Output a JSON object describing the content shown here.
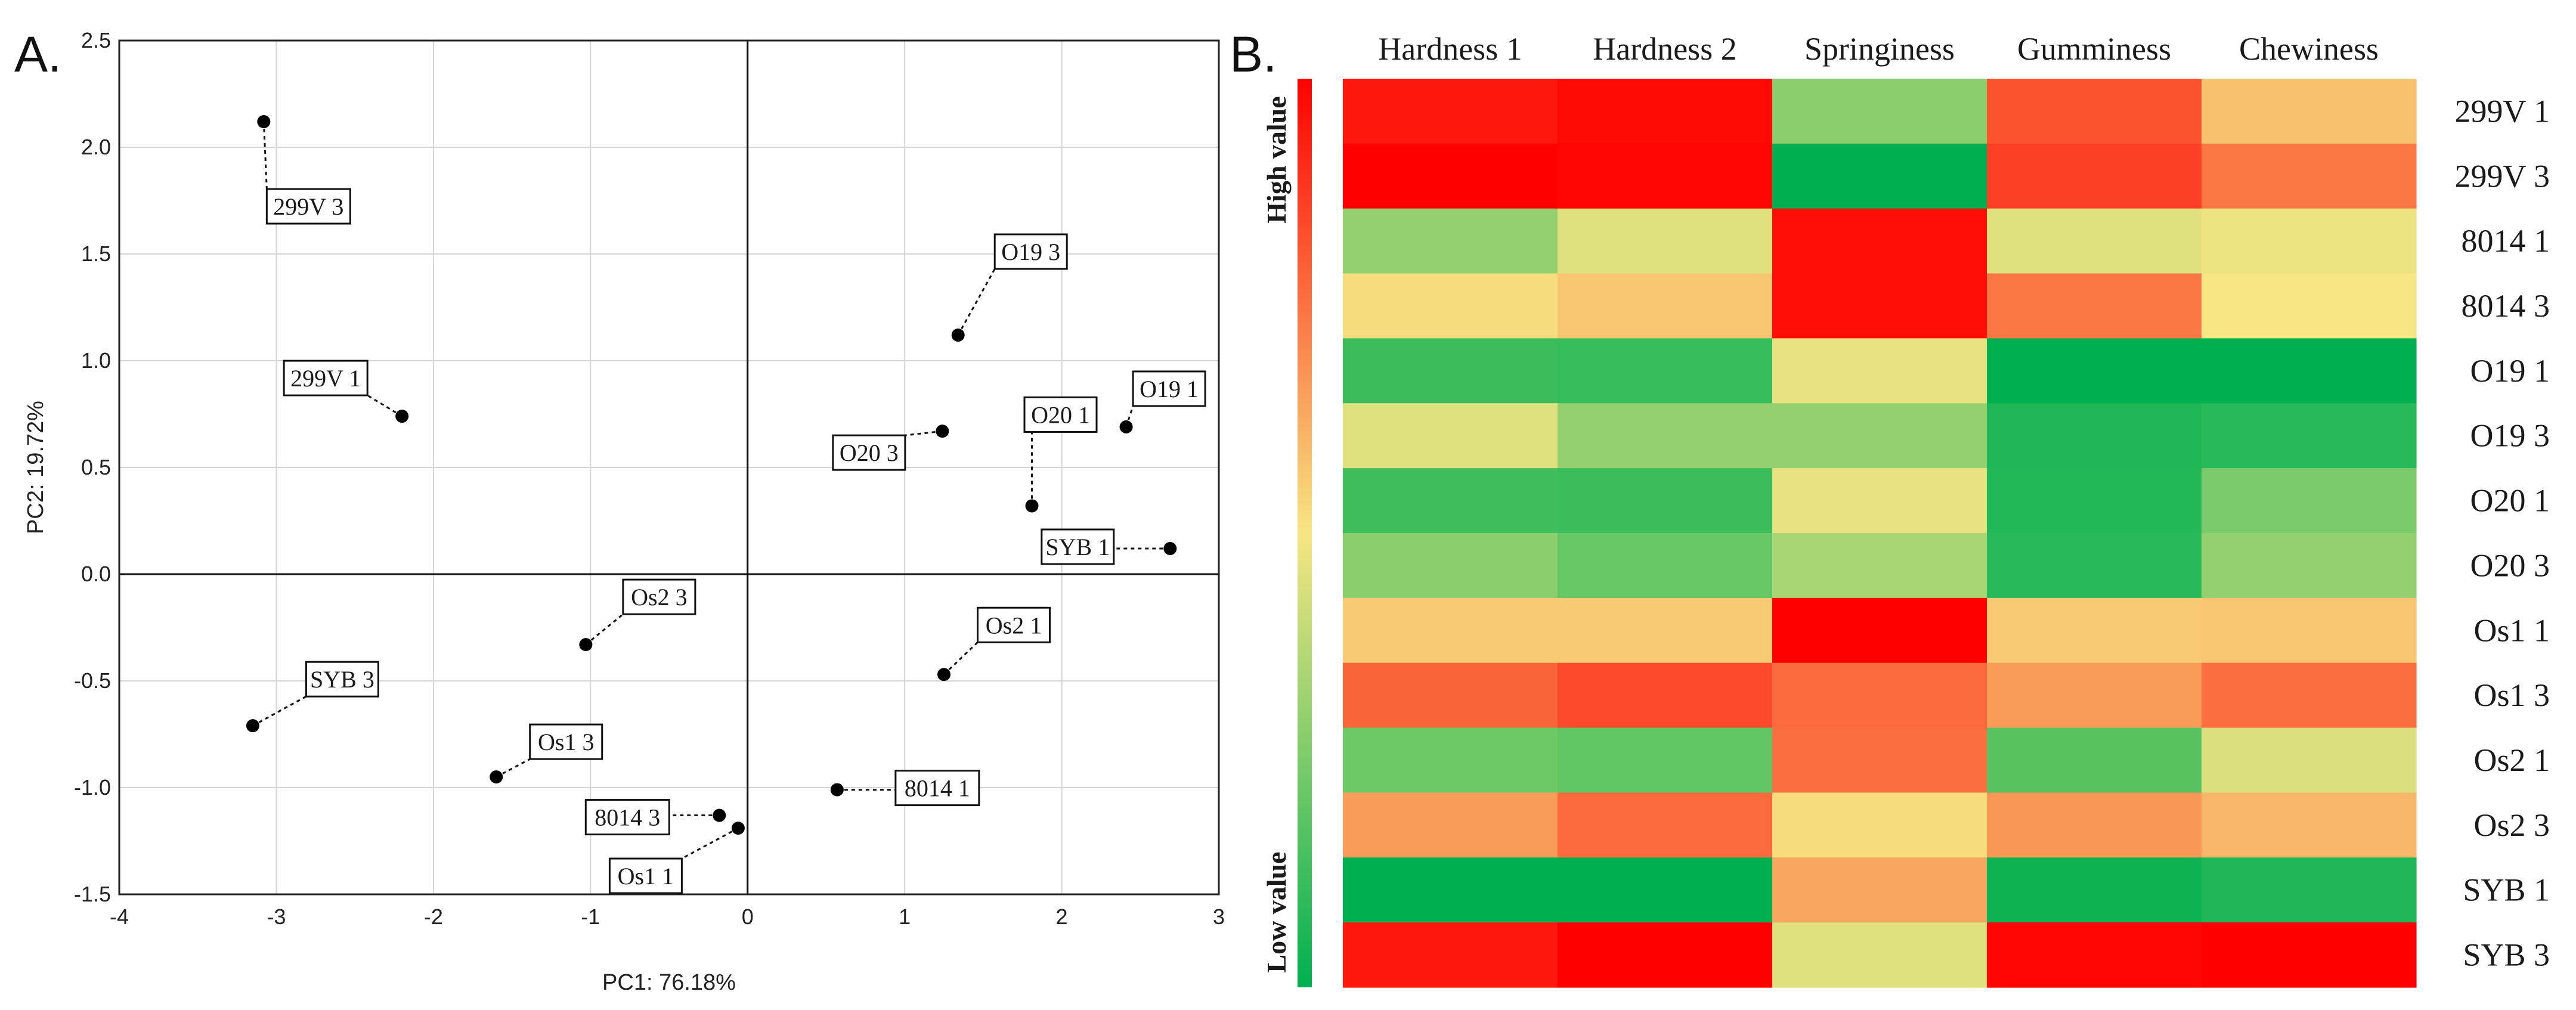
{
  "panel_a_label": "A.",
  "panel_b_label": "B.",
  "chart_data": [
    {
      "type": "scatter",
      "xlabel": "PC1: 76.18%",
      "ylabel": "PC2: 19.72%",
      "xlim": [
        -4,
        3
      ],
      "ylim": [
        -1.5,
        2.5
      ],
      "xticks": [
        -4,
        -3,
        -2,
        -1,
        0,
        1,
        2,
        3
      ],
      "yticks": [
        -1.5,
        -1.0,
        -0.5,
        0.0,
        0.5,
        1.0,
        1.5,
        2.0,
        2.5
      ],
      "xtick_labels": [
        "-4",
        "-3",
        "-2",
        "-1",
        "0",
        "1",
        "2",
        "3"
      ],
      "ytick_labels": [
        "-1.5",
        "-1.0",
        "-0.5",
        "0.0",
        "0.5",
        "1.0",
        "1.5",
        "2.0",
        "2.5"
      ],
      "grid": true,
      "points": [
        {
          "label": "299V 3",
          "x": -3.08,
          "y": 2.12
        },
        {
          "label": "299V 1",
          "x": -2.2,
          "y": 0.74
        },
        {
          "label": "O19 3",
          "x": 1.34,
          "y": 1.12
        },
        {
          "label": "O19 1",
          "x": 2.41,
          "y": 0.69
        },
        {
          "label": "O20 3",
          "x": 1.24,
          "y": 0.67
        },
        {
          "label": "O20 1",
          "x": 1.81,
          "y": 0.32
        },
        {
          "label": "SYB 1",
          "x": 2.69,
          "y": 0.12
        },
        {
          "label": "Os2 3",
          "x": -1.03,
          "y": -0.33
        },
        {
          "label": "Os2 1",
          "x": 1.25,
          "y": -0.47
        },
        {
          "label": "SYB 3",
          "x": -3.15,
          "y": -0.71
        },
        {
          "label": "Os1 3",
          "x": -1.6,
          "y": -0.95
        },
        {
          "label": "8014 3",
          "x": -0.18,
          "y": -1.13
        },
        {
          "label": "Os1 1",
          "x": -0.06,
          "y": -1.19
        },
        {
          "label": "8014 1",
          "x": 0.57,
          "y": -1.01
        }
      ]
    },
    {
      "type": "heatmap",
      "columns": [
        "Hardness 1",
        "Hardness 2",
        "Springiness",
        "Gumminess",
        "Chewiness"
      ],
      "rows": [
        "299V 1",
        "299V 3",
        "8014 1",
        "8014 3",
        "O19 1",
        "O19 3",
        "O20 1",
        "O20 3",
        "Os1 1",
        "Os1 3",
        "Os2 1",
        "Os2 3",
        "SYB 1",
        "SYB 3"
      ],
      "values": [
        [
          0.95,
          0.98,
          0.28,
          0.82,
          0.58
        ],
        [
          1.0,
          0.99,
          0.0,
          0.86,
          0.74
        ],
        [
          0.3,
          0.45,
          0.97,
          0.45,
          0.48
        ],
        [
          0.52,
          0.57,
          0.97,
          0.74,
          0.5
        ],
        [
          0.12,
          0.11,
          0.47,
          0.0,
          0.0
        ],
        [
          0.45,
          0.3,
          0.3,
          0.06,
          0.08
        ],
        [
          0.13,
          0.12,
          0.47,
          0.07,
          0.25
        ],
        [
          0.28,
          0.21,
          0.34,
          0.08,
          0.3
        ],
        [
          0.56,
          0.56,
          1.0,
          0.56,
          0.57
        ],
        [
          0.78,
          0.84,
          0.77,
          0.66,
          0.76
        ],
        [
          0.22,
          0.2,
          0.76,
          0.18,
          0.44
        ],
        [
          0.66,
          0.77,
          0.52,
          0.67,
          0.6
        ],
        [
          0.0,
          0.0,
          0.64,
          0.03,
          0.06
        ],
        [
          0.95,
          1.0,
          0.45,
          0.99,
          1.0
        ]
      ],
      "legend_high": "High value",
      "legend_low": "Low value",
      "colors": {
        "low": "#00b050",
        "mid": "#f7e683",
        "high": "#ff0000"
      }
    }
  ]
}
